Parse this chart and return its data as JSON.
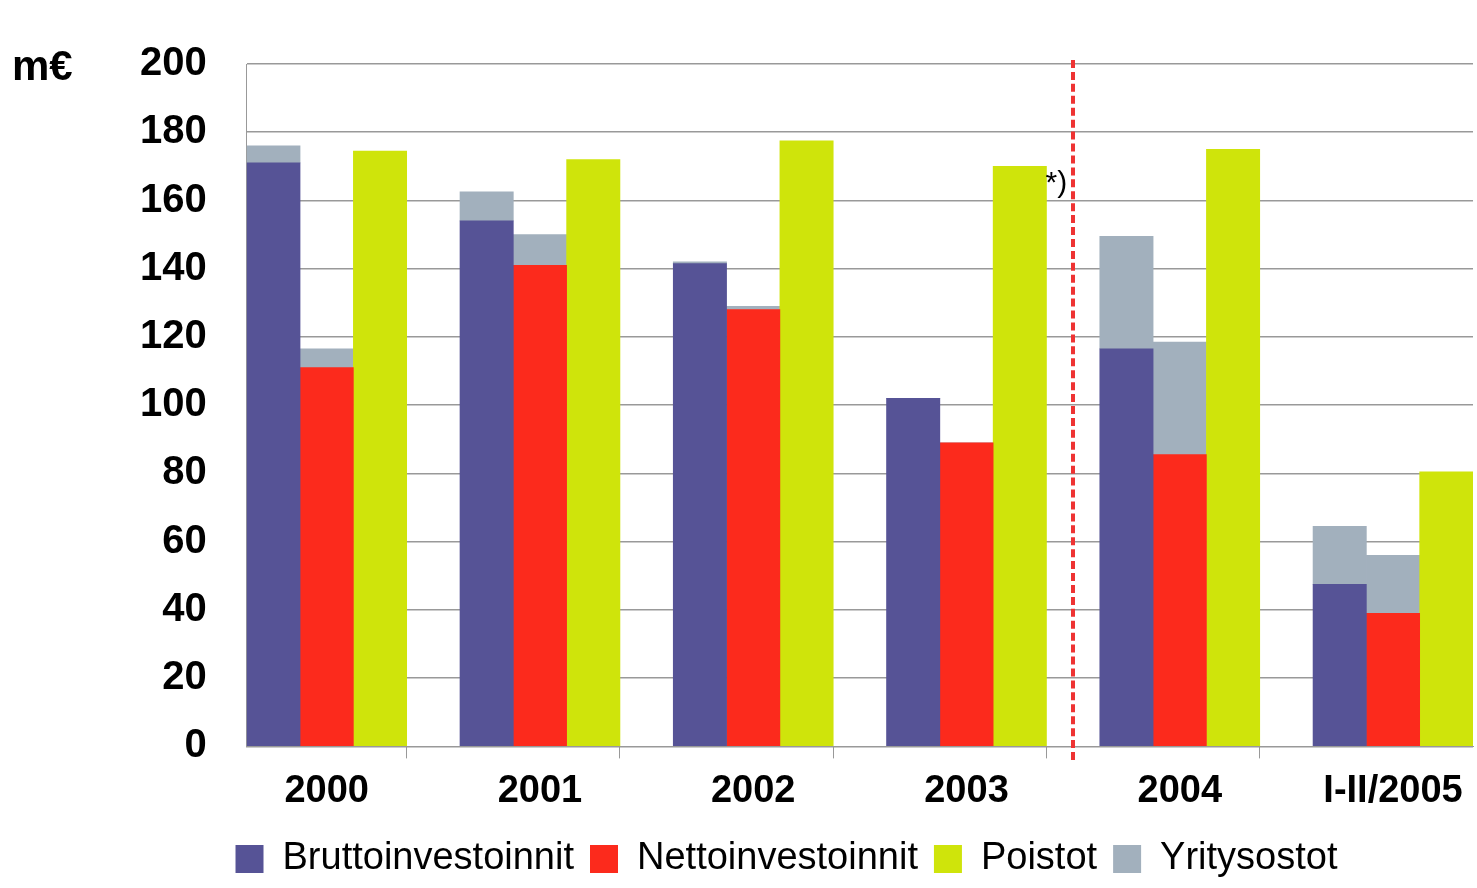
{
  "chart_data": {
    "type": "bar",
    "ylabel": "m€",
    "stacked": true,
    "categories": [
      null,
      "2000",
      null,
      null,
      null,
      "2001",
      null,
      null,
      null,
      "2002",
      null,
      null,
      null,
      "2003",
      null,
      null,
      null,
      "2004",
      null,
      null,
      null,
      "I-II/2005",
      null
    ],
    "series": [
      {
        "name": "Bruttoinvestoinnit",
        "color": "#565396",
        "values": [
          171,
          null,
          null,
          null,
          154,
          null,
          null,
          null,
          141.5,
          null,
          null,
          null,
          102,
          null,
          null,
          null,
          116.5,
          null,
          null,
          null,
          47.5,
          null,
          null
        ]
      },
      {
        "name": "Nettoinvestoinnit",
        "color": "#fc2a1c",
        "values": [
          null,
          111,
          null,
          null,
          null,
          141,
          null,
          null,
          null,
          128,
          null,
          null,
          null,
          89,
          null,
          null,
          null,
          85.5,
          null,
          null,
          null,
          39,
          null
        ]
      },
      {
        "name": "Poistot",
        "color": "#cfe40b",
        "values": [
          null,
          null,
          174.5,
          null,
          null,
          null,
          172,
          null,
          null,
          null,
          177.5,
          null,
          null,
          null,
          170,
          null,
          null,
          null,
          175,
          null,
          null,
          null,
          80.5
        ]
      },
      {
        "name": "Yritysostot",
        "color": "#a2b0bd",
        "values": [
          5,
          5.5,
          null,
          null,
          8.5,
          9,
          null,
          null,
          0.5,
          1,
          null,
          null,
          0,
          0,
          null,
          null,
          33,
          33,
          null,
          null,
          17,
          17,
          null
        ]
      }
    ],
    "ylim": [
      0,
      200
    ],
    "yticks": [
      0,
      20,
      40,
      60,
      80,
      100,
      120,
      140,
      160,
      180,
      200
    ],
    "grid": "y",
    "legend": "bottom",
    "annotations": [
      "*)"
    ]
  }
}
